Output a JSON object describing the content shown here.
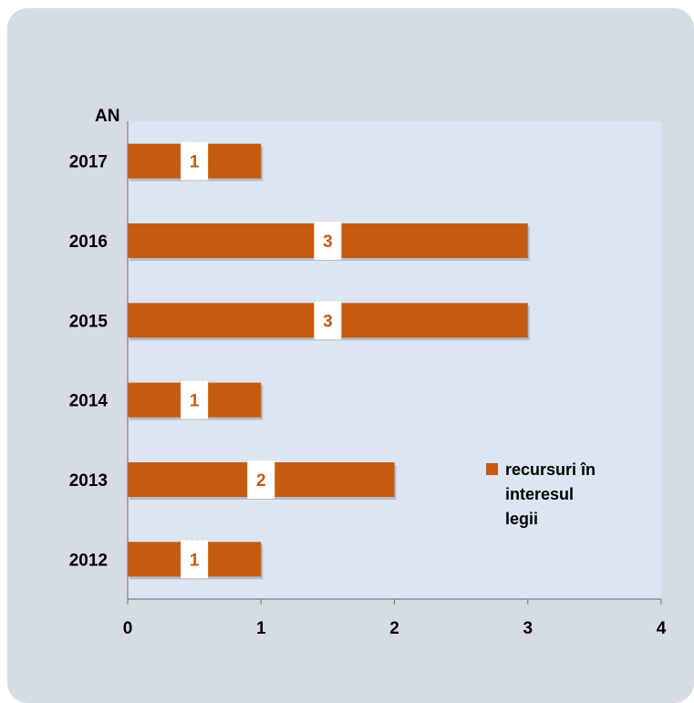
{
  "chart_data": {
    "type": "bar",
    "orientation": "horizontal",
    "y_axis_title": "AN",
    "categories": [
      "2017",
      "2016",
      "2015",
      "2014",
      "2013",
      "2012"
    ],
    "series": [
      {
        "name": "recursuri în interesul legii",
        "values": [
          1,
          3,
          3,
          1,
          2,
          1
        ]
      }
    ],
    "xlim": [
      0,
      4
    ],
    "xticks": [
      "0",
      "1",
      "2",
      "3",
      "4"
    ],
    "legend_position": "right",
    "legend_lines": [
      "recursuri în",
      "interesul",
      "legii"
    ],
    "data_labels": [
      "1",
      "3",
      "3",
      "1",
      "2",
      "1"
    ],
    "grid": false,
    "colors": {
      "bar": "#c55a11",
      "plot_background": "#dce6f2",
      "card_background": "#d6dce4",
      "label_box": "#ffffff"
    }
  }
}
